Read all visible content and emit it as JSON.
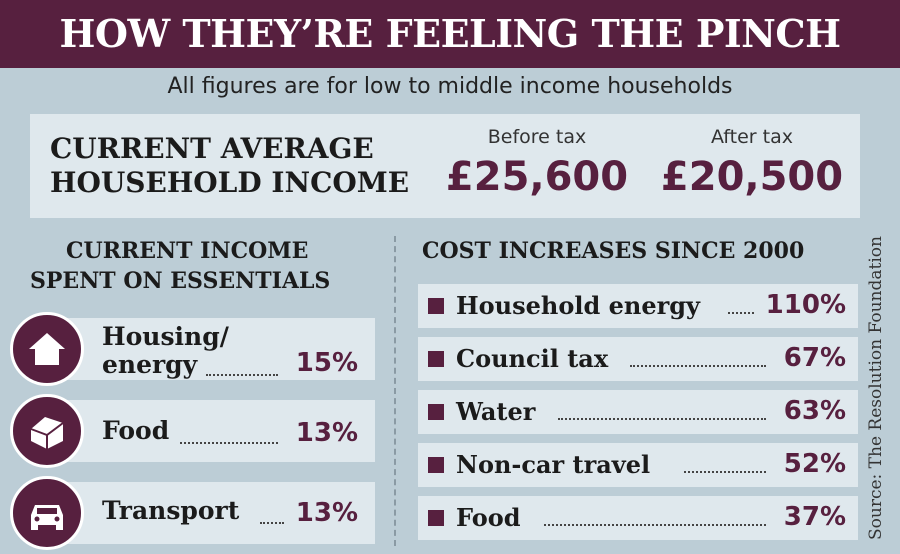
{
  "header": {
    "title": "HOW THEY’RE FEELING THE PINCH",
    "subtitle": "All figures are for low to middle income households"
  },
  "income": {
    "label_line1": "CURRENT AVERAGE",
    "label_line2": "HOUSEHOLD INCOME",
    "before_label": "Before tax",
    "before_value": "£25,600",
    "after_label": "After tax",
    "after_value": "£20,500"
  },
  "essentials": {
    "heading_line1": "CURRENT INCOME",
    "heading_line2": "SPENT ON ESSENTIALS",
    "items": [
      {
        "label_line1": "Housing/",
        "label_line2": "energy",
        "value": "15%",
        "icon": "house-icon"
      },
      {
        "label_line1": "Food",
        "value": "13%",
        "icon": "bread-icon"
      },
      {
        "label_line1": "Transport",
        "value": "13%",
        "icon": "car-icon"
      }
    ]
  },
  "costs": {
    "heading": "COST INCREASES SINCE 2000",
    "items": [
      {
        "label": "Household energy",
        "value": "110%"
      },
      {
        "label": "Council tax",
        "value": "67%"
      },
      {
        "label": "Water",
        "value": "63%"
      },
      {
        "label": "Non-car travel",
        "value": "52%"
      },
      {
        "label": "Food",
        "value": "37%"
      }
    ]
  },
  "source": "Source: The Resolution Foundation",
  "colors": {
    "accent": "#57203f",
    "background": "#bccdd6",
    "panel": "#dfe8ed"
  }
}
